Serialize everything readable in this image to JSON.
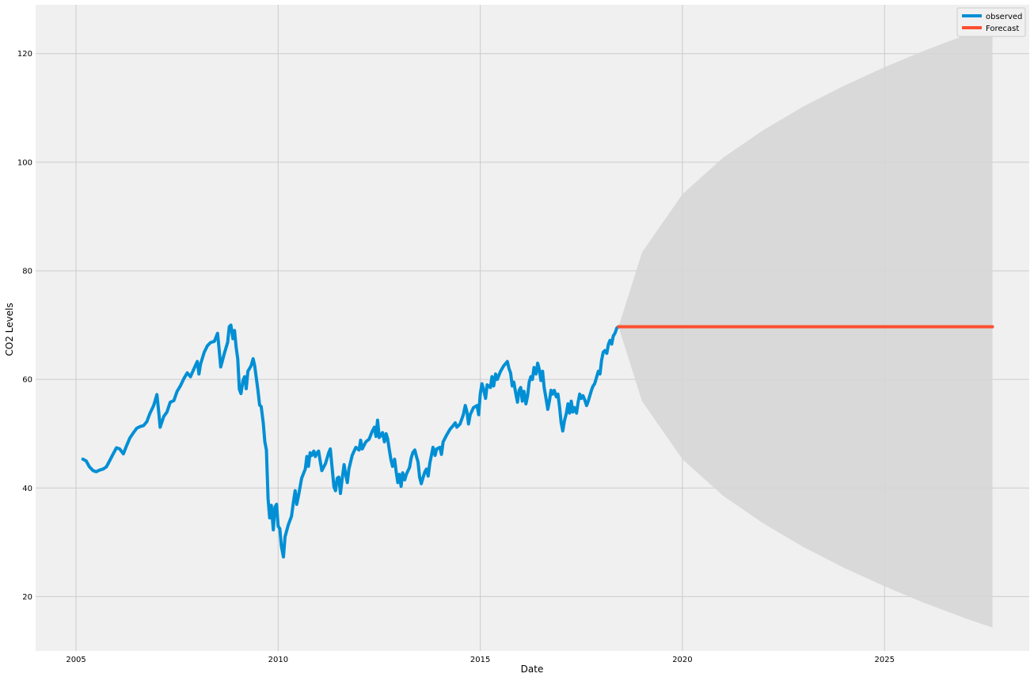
{
  "chart_data": {
    "type": "line",
    "title": "",
    "xlabel": "Date",
    "ylabel": "CO2 Levels",
    "x_ticks": [
      2005,
      2010,
      2015,
      2020,
      2025
    ],
    "y_ticks": [
      20,
      40,
      60,
      80,
      100,
      120
    ],
    "xlim": [
      2004.0,
      2028.58
    ],
    "ylim": [
      10.0,
      129.0
    ],
    "grid": true,
    "legend_position": "top-right",
    "background_color": "#f0f0f0",
    "series": [
      {
        "name": "observed",
        "color": "#008fd5",
        "points": [
          [
            2005.17,
            45.3
          ],
          [
            2005.25,
            45.0
          ],
          [
            2005.33,
            43.9
          ],
          [
            2005.42,
            43.2
          ],
          [
            2005.5,
            43.0
          ],
          [
            2005.58,
            43.3
          ],
          [
            2005.67,
            43.5
          ],
          [
            2005.75,
            43.9
          ],
          [
            2005.83,
            45.0
          ],
          [
            2005.92,
            46.3
          ],
          [
            2006.0,
            47.4
          ],
          [
            2006.08,
            47.2
          ],
          [
            2006.17,
            46.3
          ],
          [
            2006.25,
            47.8
          ],
          [
            2006.33,
            49.2
          ],
          [
            2006.42,
            50.2
          ],
          [
            2006.5,
            51.0
          ],
          [
            2006.58,
            51.3
          ],
          [
            2006.67,
            51.5
          ],
          [
            2006.75,
            52.2
          ],
          [
            2006.83,
            53.8
          ],
          [
            2006.92,
            55.2
          ],
          [
            2007.0,
            57.2
          ],
          [
            2007.04,
            54.4
          ],
          [
            2007.08,
            51.2
          ],
          [
            2007.17,
            53.2
          ],
          [
            2007.25,
            54.0
          ],
          [
            2007.33,
            55.8
          ],
          [
            2007.42,
            56.1
          ],
          [
            2007.5,
            57.8
          ],
          [
            2007.58,
            58.8
          ],
          [
            2007.67,
            60.2
          ],
          [
            2007.75,
            61.2
          ],
          [
            2007.83,
            60.5
          ],
          [
            2007.92,
            62.0
          ],
          [
            2008.0,
            63.3
          ],
          [
            2008.04,
            61.0
          ],
          [
            2008.08,
            62.8
          ],
          [
            2008.17,
            65.0
          ],
          [
            2008.25,
            66.2
          ],
          [
            2008.33,
            66.8
          ],
          [
            2008.42,
            67.0
          ],
          [
            2008.5,
            68.5
          ],
          [
            2008.54,
            65.5
          ],
          [
            2008.58,
            62.3
          ],
          [
            2008.67,
            64.8
          ],
          [
            2008.75,
            66.8
          ],
          [
            2008.79,
            69.7
          ],
          [
            2008.83,
            70.0
          ],
          [
            2008.88,
            67.5
          ],
          [
            2008.92,
            69.0
          ],
          [
            2008.96,
            66.0
          ],
          [
            2009.0,
            63.8
          ],
          [
            2009.04,
            58.2
          ],
          [
            2009.08,
            57.4
          ],
          [
            2009.13,
            59.8
          ],
          [
            2009.17,
            60.5
          ],
          [
            2009.21,
            58.3
          ],
          [
            2009.25,
            61.5
          ],
          [
            2009.33,
            62.5
          ],
          [
            2009.38,
            63.8
          ],
          [
            2009.42,
            62.5
          ],
          [
            2009.5,
            58.0
          ],
          [
            2009.54,
            55.3
          ],
          [
            2009.58,
            55.0
          ],
          [
            2009.63,
            52.0
          ],
          [
            2009.67,
            48.5
          ],
          [
            2009.71,
            47.0
          ],
          [
            2009.75,
            38.0
          ],
          [
            2009.79,
            34.5
          ],
          [
            2009.83,
            36.8
          ],
          [
            2009.88,
            32.3
          ],
          [
            2009.92,
            36.5
          ],
          [
            2009.96,
            37.0
          ],
          [
            2010.0,
            33.0
          ],
          [
            2010.04,
            32.5
          ],
          [
            2010.08,
            29.3
          ],
          [
            2010.13,
            27.3
          ],
          [
            2010.17,
            31.0
          ],
          [
            2010.25,
            33.2
          ],
          [
            2010.33,
            34.8
          ],
          [
            2010.38,
            37.5
          ],
          [
            2010.42,
            39.5
          ],
          [
            2010.46,
            37.0
          ],
          [
            2010.5,
            38.5
          ],
          [
            2010.58,
            41.8
          ],
          [
            2010.67,
            43.5
          ],
          [
            2010.71,
            45.8
          ],
          [
            2010.75,
            44.0
          ],
          [
            2010.79,
            46.5
          ],
          [
            2010.83,
            46.0
          ],
          [
            2010.88,
            46.8
          ],
          [
            2010.92,
            45.8
          ],
          [
            2010.96,
            46.5
          ],
          [
            2011.0,
            46.8
          ],
          [
            2011.04,
            45.0
          ],
          [
            2011.08,
            43.2
          ],
          [
            2011.17,
            44.5
          ],
          [
            2011.25,
            46.5
          ],
          [
            2011.29,
            47.2
          ],
          [
            2011.33,
            44.0
          ],
          [
            2011.38,
            40.2
          ],
          [
            2011.42,
            39.5
          ],
          [
            2011.46,
            41.8
          ],
          [
            2011.5,
            42.0
          ],
          [
            2011.54,
            39.0
          ],
          [
            2011.58,
            41.5
          ],
          [
            2011.63,
            44.3
          ],
          [
            2011.67,
            42.5
          ],
          [
            2011.71,
            41.0
          ],
          [
            2011.75,
            43.5
          ],
          [
            2011.83,
            46.0
          ],
          [
            2011.92,
            47.5
          ],
          [
            2012.0,
            47.0
          ],
          [
            2012.04,
            48.8
          ],
          [
            2012.08,
            47.2
          ],
          [
            2012.17,
            48.5
          ],
          [
            2012.25,
            49.0
          ],
          [
            2012.33,
            50.5
          ],
          [
            2012.38,
            51.2
          ],
          [
            2012.42,
            49.5
          ],
          [
            2012.46,
            52.5
          ],
          [
            2012.5,
            49.3
          ],
          [
            2012.58,
            50.2
          ],
          [
            2012.63,
            48.5
          ],
          [
            2012.67,
            50.0
          ],
          [
            2012.71,
            49.0
          ],
          [
            2012.75,
            47.0
          ],
          [
            2012.79,
            45.2
          ],
          [
            2012.83,
            44.0
          ],
          [
            2012.88,
            45.3
          ],
          [
            2012.92,
            43.0
          ],
          [
            2012.96,
            41.0
          ],
          [
            2013.0,
            42.5
          ],
          [
            2013.04,
            40.3
          ],
          [
            2013.08,
            42.8
          ],
          [
            2013.13,
            41.5
          ],
          [
            2013.17,
            42.5
          ],
          [
            2013.25,
            43.8
          ],
          [
            2013.29,
            45.5
          ],
          [
            2013.33,
            46.5
          ],
          [
            2013.38,
            47.0
          ],
          [
            2013.42,
            45.8
          ],
          [
            2013.46,
            44.8
          ],
          [
            2013.5,
            42.0
          ],
          [
            2013.54,
            40.8
          ],
          [
            2013.58,
            41.8
          ],
          [
            2013.63,
            43.0
          ],
          [
            2013.67,
            43.5
          ],
          [
            2013.71,
            42.2
          ],
          [
            2013.75,
            44.5
          ],
          [
            2013.79,
            46.0
          ],
          [
            2013.83,
            47.5
          ],
          [
            2013.88,
            46.0
          ],
          [
            2013.92,
            47.2
          ],
          [
            2014.0,
            47.5
          ],
          [
            2014.04,
            46.2
          ],
          [
            2014.08,
            48.5
          ],
          [
            2014.17,
            49.8
          ],
          [
            2014.25,
            50.8
          ],
          [
            2014.33,
            51.5
          ],
          [
            2014.38,
            52.0
          ],
          [
            2014.42,
            51.2
          ],
          [
            2014.5,
            51.8
          ],
          [
            2014.58,
            53.5
          ],
          [
            2014.63,
            55.2
          ],
          [
            2014.67,
            54.0
          ],
          [
            2014.71,
            51.8
          ],
          [
            2014.75,
            53.5
          ],
          [
            2014.83,
            54.8
          ],
          [
            2014.92,
            55.2
          ],
          [
            2014.96,
            53.5
          ],
          [
            2015.0,
            57.3
          ],
          [
            2015.04,
            59.2
          ],
          [
            2015.08,
            58.2
          ],
          [
            2015.13,
            56.5
          ],
          [
            2015.17,
            59.0
          ],
          [
            2015.25,
            58.5
          ],
          [
            2015.29,
            60.5
          ],
          [
            2015.33,
            58.8
          ],
          [
            2015.38,
            61.0
          ],
          [
            2015.42,
            60.0
          ],
          [
            2015.5,
            61.5
          ],
          [
            2015.58,
            62.5
          ],
          [
            2015.67,
            63.3
          ],
          [
            2015.71,
            62.0
          ],
          [
            2015.75,
            61.2
          ],
          [
            2015.79,
            58.8
          ],
          [
            2015.83,
            59.5
          ],
          [
            2015.88,
            57.3
          ],
          [
            2015.92,
            55.8
          ],
          [
            2015.96,
            58.0
          ],
          [
            2016.0,
            58.5
          ],
          [
            2016.04,
            56.0
          ],
          [
            2016.08,
            57.8
          ],
          [
            2016.13,
            55.5
          ],
          [
            2016.17,
            57.0
          ],
          [
            2016.21,
            59.5
          ],
          [
            2016.25,
            60.5
          ],
          [
            2016.29,
            60.0
          ],
          [
            2016.33,
            62.2
          ],
          [
            2016.38,
            61.0
          ],
          [
            2016.42,
            63.0
          ],
          [
            2016.46,
            61.8
          ],
          [
            2016.5,
            59.8
          ],
          [
            2016.54,
            61.5
          ],
          [
            2016.58,
            58.5
          ],
          [
            2016.63,
            56.3
          ],
          [
            2016.67,
            54.5
          ],
          [
            2016.71,
            56.0
          ],
          [
            2016.75,
            58.0
          ],
          [
            2016.79,
            57.3
          ],
          [
            2016.83,
            58.0
          ],
          [
            2016.88,
            56.8
          ],
          [
            2016.92,
            57.3
          ],
          [
            2016.96,
            55.0
          ],
          [
            2017.0,
            52.0
          ],
          [
            2017.04,
            50.5
          ],
          [
            2017.08,
            52.3
          ],
          [
            2017.13,
            53.8
          ],
          [
            2017.17,
            55.5
          ],
          [
            2017.21,
            53.8
          ],
          [
            2017.25,
            56.0
          ],
          [
            2017.29,
            54.0
          ],
          [
            2017.33,
            54.8
          ],
          [
            2017.38,
            53.8
          ],
          [
            2017.42,
            55.8
          ],
          [
            2017.46,
            57.3
          ],
          [
            2017.5,
            56.5
          ],
          [
            2017.54,
            57.0
          ],
          [
            2017.58,
            56.3
          ],
          [
            2017.63,
            55.2
          ],
          [
            2017.67,
            56.0
          ],
          [
            2017.71,
            57.0
          ],
          [
            2017.75,
            58.0
          ],
          [
            2017.79,
            58.8
          ],
          [
            2017.83,
            59.2
          ],
          [
            2017.88,
            60.5
          ],
          [
            2017.92,
            61.5
          ],
          [
            2017.96,
            61.0
          ],
          [
            2018.0,
            63.5
          ],
          [
            2018.04,
            65.0
          ],
          [
            2018.08,
            65.3
          ],
          [
            2018.13,
            64.8
          ],
          [
            2018.17,
            66.5
          ],
          [
            2018.21,
            67.2
          ],
          [
            2018.25,
            66.5
          ],
          [
            2018.29,
            68.0
          ],
          [
            2018.33,
            68.5
          ],
          [
            2018.38,
            69.5
          ],
          [
            2018.42,
            69.7
          ]
        ]
      },
      {
        "name": "Forecast",
        "color": "#fc4f30",
        "points": [
          [
            2018.42,
            69.7
          ],
          [
            2027.67,
            69.7
          ]
        ]
      }
    ],
    "confidence_band": {
      "color": "#d6d6d6",
      "points": [
        [
          2018.42,
          69.7,
          69.7
        ],
        [
          2019.0,
          56.0,
          83.4
        ],
        [
          2020.0,
          45.3,
          94.1
        ],
        [
          2021.0,
          38.6,
          100.8
        ],
        [
          2022.0,
          33.5,
          105.9
        ],
        [
          2023.0,
          29.1,
          110.3
        ],
        [
          2024.0,
          25.3,
          114.1
        ],
        [
          2025.0,
          21.9,
          117.5
        ],
        [
          2026.0,
          18.8,
          120.6
        ],
        [
          2027.0,
          16.0,
          123.4
        ],
        [
          2027.67,
          14.3,
          125.1
        ]
      ]
    }
  }
}
